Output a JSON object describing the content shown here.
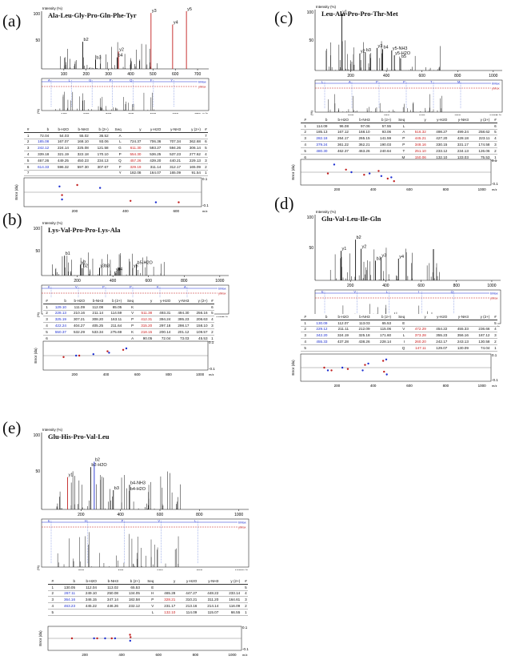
{
  "panels": [
    {
      "label": "(a)",
      "peptide": "Ala-Leu-Gly-Pro-Gln-Phe-Tyr",
      "intensity_label": "Intensity (%)",
      "y100": "100",
      "y50": "50",
      "x_ticks": [
        "100",
        "200",
        "300",
        "400",
        "500",
        "600",
        "700"
      ],
      "mirror_ticks": [
        "100",
        "200",
        "300",
        "400",
        "500",
        "600",
        "700"
      ],
      "mz": "m/z",
      "max_b": "bMax",
      "max_y": "yMax",
      "seq_blue": [
        "A",
        "L",
        "G",
        "P",
        "Q",
        "F",
        "Y"
      ],
      "peaks": [
        {
          "label": "b2",
          "x": 185,
          "h": 0.47,
          "c": "k"
        },
        {
          "label": "b3",
          "x": 242,
          "h": 0.16,
          "c": "k"
        },
        {
          "label": "y2",
          "x": 345,
          "h": 0.3,
          "c": "r"
        },
        {
          "label": "b4",
          "x": 339,
          "h": 0.2,
          "c": "k"
        },
        {
          "label": "y3",
          "x": 491,
          "h": 0.97,
          "c": "r"
        },
        {
          "label": "y4",
          "x": 588,
          "h": 0.77,
          "c": "r"
        },
        {
          "label": "y5",
          "x": 650,
          "h": 1.0,
          "c": "r"
        }
      ],
      "headers": [
        "#",
        "b",
        "b-H2O",
        "b-NH3",
        "b (2+)",
        "Seq",
        "y",
        "y-H2O",
        "y-NH3",
        "y (2+)",
        "#"
      ],
      "rows": [
        [
          "1",
          "72.04",
          "54.03",
          "55.02",
          "36.52",
          "A",
          "",
          "",
          "",
          "",
          "7"
        ],
        [
          "2",
          "185.08",
          "167.07",
          "168.10",
          "93.06",
          "L",
          "724.37",
          "706.36",
          "707.34",
          "362.68",
          "6"
        ],
        [
          "3",
          "242.12",
          "224.14",
          "225.08",
          "121.58",
          "G",
          "611.30",
          "593.27",
          "594.26",
          "306.14",
          "5"
        ],
        [
          "4",
          "339.18",
          "321.19",
          "322.18",
          "170.10",
          "P",
          "554.30",
          "536.25",
          "537.23",
          "277.62",
          "4"
        ],
        [
          "5",
          "467.26",
          "449.25",
          "450.23",
          "234.13",
          "Q",
          "457.26",
          "439.20",
          "440.21",
          "229.13",
          "3"
        ],
        [
          "6",
          "614.33",
          "596.32",
          "597.30",
          "307.67",
          "F",
          "329.19",
          "311.14",
          "312.17",
          "165.09",
          "2"
        ],
        [
          "7",
          "",
          "",
          "",
          "",
          "Y",
          "182.08",
          "164.07",
          "165.09",
          "91.54",
          "1"
        ]
      ],
      "bold_b": [
        "2",
        "3",
        "6"
      ],
      "bold_y": [
        "3",
        "4",
        "5",
        "6"
      ],
      "error_label": "Error (da)",
      "err_top": "0.1",
      "err_bottom": "-0.1",
      "err_ticks": [
        "200",
        "400",
        "600"
      ],
      "errors": [
        [
          150,
          -0.02
        ],
        [
          150,
          -0.05
        ],
        [
          210,
          0.05
        ],
        [
          300,
          0.03
        ],
        [
          420,
          -0.06
        ],
        [
          520,
          -0.07
        ],
        [
          610,
          -0.07
        ],
        [
          140,
          0.04
        ]
      ]
    },
    {
      "label": "(b)",
      "peptide": "Lys-Val-Pro-Pro-Lys-Ala",
      "intensity_label": "Intensity (%)",
      "y100": "100",
      "y50": "50",
      "x_ticks": [
        "200",
        "400",
        "600",
        "800",
        "1000"
      ],
      "mirror_ticks": [
        "200",
        "400",
        "600",
        "800",
        "1000"
      ],
      "mz": "m/z",
      "max_b": "bMax",
      "max_y": "yMax",
      "seq_blue": [
        "K",
        "V",
        "P",
        "P",
        "K",
        "A"
      ],
      "peaks": [
        {
          "label": "b1",
          "x": 129,
          "h": 0.4,
          "c": "k"
        },
        {
          "label": "y2",
          "x": 218,
          "h": 0.22,
          "c": "k"
        },
        {
          "label": "b2",
          "x": 228,
          "h": 0.15,
          "c": "k"
        },
        {
          "label": "y3b3",
          "x": 325,
          "h": 0.15,
          "c": "k"
        },
        {
          "label": "b4",
          "x": 422,
          "h": 0.09,
          "c": "k"
        },
        {
          "label": "y4",
          "x": 412,
          "h": 0.08,
          "c": "k"
        },
        {
          "label": "b5-H2O",
          "x": 532,
          "h": 0.22,
          "c": "k"
        },
        {
          "label": "y5",
          "x": 511,
          "h": 0.15,
          "c": "k"
        }
      ],
      "headers": [
        "#",
        "b",
        "b-H2O",
        "b-NH3",
        "b (2+)",
        "Seq",
        "y",
        "y-H2O",
        "y-NH3",
        "y (2+)",
        "#"
      ],
      "rows": [
        [
          "1",
          "129.10",
          "111.09",
          "112.08",
          "65.05",
          "K",
          "",
          "",
          "",
          "",
          "6"
        ],
        [
          "2",
          "228.13",
          "210.16",
          "211.14",
          "114.59",
          "V",
          "511.38",
          "493.31",
          "494.30",
          "256.16",
          "5"
        ],
        [
          "3",
          "325.19",
          "307.21",
          "308.20",
          "163.11",
          "P",
          "412.31",
          "394.24",
          "395.23",
          "206.63",
          "4"
        ],
        [
          "4",
          "422.24",
          "404.27",
          "405.25",
          "211.64",
          "P",
          "315.20",
          "297.18",
          "298.17",
          "158.10",
          "3"
        ],
        [
          "5",
          "550.37",
          "532.29",
          "533.34",
          "275.69",
          "K",
          "218.15",
          "200.14",
          "201.12",
          "109.57",
          "2"
        ],
        [
          "6",
          "",
          "",
          "",
          "",
          "A",
          "90.05",
          "72.04",
          "73.03",
          "45.53",
          "1"
        ]
      ],
      "bold_b": [
        "1",
        "2",
        "3",
        "4",
        "5"
      ],
      "bold_y": [
        "2",
        "3",
        "4",
        "5"
      ],
      "error_label": "Error (da)",
      "err_top": "0.1",
      "err_bottom": "-0.1",
      "err_ticks": [
        "200",
        "400",
        "600",
        "800",
        "1000"
      ],
      "errors": [
        [
          130,
          -0.01
        ],
        [
          210,
          0.0
        ],
        [
          230,
          0.0
        ],
        [
          320,
          0.01
        ],
        [
          410,
          0.03
        ],
        [
          420,
          0.02
        ],
        [
          510,
          0.04
        ],
        [
          530,
          0.05
        ]
      ]
    },
    {
      "label": "(c)",
      "peptide": "Leu-Ala-Pro-Pro-Thr-Met",
      "intensity_label": "Intensity (%)",
      "y100": "100",
      "y50": "50",
      "x_ticks": [
        "200",
        "400",
        "600",
        "800",
        "1000"
      ],
      "mirror_ticks": [
        "200",
        "400",
        "600",
        "800",
        "1000"
      ],
      "mz": "m/z",
      "max_b": "bMax",
      "max_y": "yMax",
      "seq_blue": [
        "L",
        "A",
        "P",
        "P",
        "T",
        "M"
      ],
      "peaks": [
        {
          "label": "y1",
          "x": 150,
          "h": 0.93,
          "c": "k"
        },
        {
          "label": "y2",
          "x": 251,
          "h": 0.28,
          "c": "k"
        },
        {
          "label": "y3",
          "x": 348,
          "h": 0.37,
          "c": "k"
        },
        {
          "label": "b4",
          "x": 379,
          "h": 0.35,
          "c": "k"
        },
        {
          "label": "b3",
          "x": 282,
          "h": 0.3,
          "c": "k"
        },
        {
          "label": "b5",
          "x": 480,
          "h": 0.2,
          "c": "k"
        },
        {
          "label": "y5-NH3",
          "x": 430,
          "h": 0.33,
          "c": "k"
        },
        {
          "label": "y5-H2O",
          "x": 445,
          "h": 0.25,
          "c": "k"
        }
      ],
      "headers": [
        "#",
        "b",
        "b-H2O",
        "b-NH3",
        "b (2+)",
        "Seq",
        "y",
        "y-H2O",
        "y-NH3",
        "y (2+)",
        "#"
      ],
      "rows": [
        [
          "1",
          "114.09",
          "96.08",
          "97.06",
          "57.55",
          "L",
          "",
          "",
          "",
          "",
          "6"
        ],
        [
          "2",
          "185.13",
          "167.12",
          "168.10",
          "93.06",
          "A",
          "516.32",
          "498.27",
          "499.24",
          "258.62",
          "5"
        ],
        [
          "3",
          "282.18",
          "264.17",
          "265.15",
          "141.59",
          "P",
          "445.21",
          "427.20",
          "428.18",
          "223.11",
          "4"
        ],
        [
          "4",
          "379.24",
          "361.22",
          "362.21",
          "190.03",
          "P",
          "348.16",
          "330.15",
          "331.17",
          "174.58",
          "3"
        ],
        [
          "5",
          "480.30",
          "462.37",
          "463.26",
          "240.64",
          "T",
          "251.10",
          "233.12",
          "234.13",
          "126.06",
          "2"
        ],
        [
          "6",
          "",
          "",
          "",
          "",
          "M",
          "150.06",
          "132.10",
          "133.03",
          "75.53",
          "1"
        ]
      ],
      "bold_b": [
        "3",
        "4",
        "5"
      ],
      "bold_y": [
        "2",
        "3",
        "4",
        "5",
        "6"
      ],
      "error_label": "Error (da)",
      "err_top": "0.1",
      "err_bottom": "-0.1",
      "err_ticks": [
        "200",
        "400",
        "600",
        "800",
        "1000"
      ],
      "errors": [
        [
          150,
          -0.01
        ],
        [
          185,
          0.06
        ],
        [
          250,
          0.02
        ],
        [
          280,
          0.0
        ],
        [
          350,
          -0.02
        ],
        [
          380,
          -0.01
        ],
        [
          430,
          0.01
        ],
        [
          445,
          -0.03
        ],
        [
          480,
          -0.05
        ],
        [
          500,
          -0.04
        ],
        [
          515,
          -0.07
        ]
      ]
    },
    {
      "label": "(d)",
      "peptide": "Glu-Val-Leu-Ile-Gln",
      "intensity_label": "Intensity (%)",
      "y100": "100",
      "y50": "50",
      "x_ticks": [
        "200",
        "400",
        "600",
        "800",
        "1000"
      ],
      "mirror_ticks": [
        "200",
        "400",
        "600",
        "800",
        "1000"
      ],
      "mz": "m/z",
      "max_b": "bMax",
      "max_y": "yMax",
      "seq_blue": [
        "E",
        "V",
        "L",
        "I",
        "Q"
      ],
      "peaks": [
        {
          "label": "y1",
          "x": 147,
          "h": 0.45,
          "c": "k"
        },
        {
          "label": "b2",
          "x": 229,
          "h": 0.62,
          "c": "k"
        },
        {
          "label": "y2",
          "x": 260,
          "h": 0.48,
          "c": "k"
        },
        {
          "label": "b3",
          "x": 342,
          "h": 0.3,
          "c": "k"
        },
        {
          "label": "y3",
          "x": 373,
          "h": 0.35,
          "c": "k"
        },
        {
          "label": "y4",
          "x": 472,
          "h": 0.33,
          "c": "k"
        }
      ],
      "headers": [
        "#",
        "b",
        "b-H2O",
        "b-NH3",
        "b (2+)",
        "Seq",
        "y",
        "y-H2O",
        "y-NH3",
        "y (2+)",
        "#"
      ],
      "rows": [
        [
          "1",
          "130.09",
          "112.07",
          "113.03",
          "65.53",
          "E",
          "",
          "",
          "",
          "",
          "5"
        ],
        [
          "2",
          "229.12",
          "211.11",
          "212.09",
          "115.06",
          "V",
          "472.29",
          "454.22",
          "455.33",
          "236.66",
          "4"
        ],
        [
          "3",
          "342.20",
          "324.19",
          "325.18",
          "171.60",
          "L",
          "373.28",
          "355.23",
          "356.16",
          "187.12",
          "3"
        ],
        [
          "4",
          "455.33",
          "437.28",
          "438.26",
          "228.14",
          "I",
          "260.20",
          "242.17",
          "243.13",
          "130.58",
          "2"
        ],
        [
          "5",
          "",
          "",
          "",
          "",
          "Q",
          "147.11",
          "129.07",
          "130.09",
          "74.04",
          "1"
        ]
      ],
      "bold_b": [
        "1",
        "2",
        "3",
        "4"
      ],
      "bold_y": [
        "2",
        "3",
        "4",
        "5"
      ],
      "error_label": "Error (da)",
      "err_top": "0.1",
      "err_bottom": "-0.1",
      "err_ticks": [
        "200",
        "400",
        "600",
        "800",
        "1000"
      ],
      "errors": [
        [
          130,
          0.0
        ],
        [
          150,
          -0.02
        ],
        [
          170,
          -0.02
        ],
        [
          230,
          0.0
        ],
        [
          260,
          -0.01
        ],
        [
          342,
          -0.02
        ],
        [
          355,
          0.02
        ],
        [
          373,
          0.03
        ],
        [
          455,
          0.05
        ],
        [
          472,
          0.06
        ],
        [
          460,
          -0.03
        ],
        [
          475,
          -0.05
        ]
      ]
    },
    {
      "label": "(e)",
      "peptide": "Glu-His-Pro-Val-Leu",
      "intensity_label": "Intensity (%)",
      "y100": "100",
      "y50": "50",
      "x_ticks": [
        "200",
        "400",
        "600",
        "800",
        "1000"
      ],
      "mirror_ticks": [
        "200",
        "400",
        "600",
        "800",
        "1000"
      ],
      "mz": "m/z",
      "max_b": "bMax",
      "max_y": "yMax",
      "seq_blue": [
        "E",
        "H",
        "P",
        "V",
        "L"
      ],
      "peaks": [
        {
          "label": "y1",
          "x": 132,
          "h": 0.42,
          "c": "r"
        },
        {
          "label": "b2-H2O",
          "x": 249,
          "h": 0.55,
          "c": "k"
        },
        {
          "label": "b2",
          "x": 267,
          "h": 0.62,
          "c": "b"
        },
        {
          "label": "b3",
          "x": 364,
          "h": 0.25,
          "c": "k"
        },
        {
          "label": "b4-NH3",
          "x": 446,
          "h": 0.32,
          "c": "k"
        },
        {
          "label": "b4-H2O",
          "x": 445,
          "h": 0.24,
          "c": "k"
        }
      ],
      "headers": [
        "#",
        "b",
        "b-H2O",
        "b-NH3",
        "b (2+)",
        "Seq",
        "y",
        "y-H2O",
        "y-NH3",
        "y (2+)",
        "#"
      ],
      "rows": [
        [
          "1",
          "130.05",
          "112.04",
          "113.02",
          "65.53",
          "E",
          "",
          "",
          "",
          "",
          "5"
        ],
        [
          "2",
          "267.11",
          "249.10",
          "250.08",
          "134.05",
          "H",
          "465.28",
          "447.27",
          "448.22",
          "233.14",
          "4"
        ],
        [
          "3",
          "364.16",
          "346.15",
          "347.14",
          "182.58",
          "P",
          "328.21",
          "310.21",
          "311.20",
          "164.61",
          "3"
        ],
        [
          "4",
          "463.23",
          "445.22",
          "446.26",
          "232.12",
          "V",
          "231.17",
          "213.16",
          "214.14",
          "116.09",
          "2"
        ],
        [
          "5",
          "",
          "",
          "",
          "",
          "L",
          "132.10",
          "114.09",
          "115.07",
          "66.55",
          "1"
        ]
      ],
      "bold_b": [
        "2",
        "3",
        "4"
      ],
      "bold_y": [
        "3",
        "5"
      ],
      "error_label": "Error (da)",
      "err_top": "0.1",
      "err_bottom": "-0.1",
      "err_ticks": [
        "200",
        "400",
        "600",
        "800",
        "1000"
      ],
      "errors": [
        [
          130,
          0.0
        ],
        [
          250,
          0.0
        ],
        [
          267,
          0.0
        ],
        [
          310,
          0.0
        ],
        [
          346,
          0.0
        ],
        [
          364,
          0.0
        ],
        [
          445,
          0.03
        ],
        [
          446,
          -0.02
        ],
        [
          448,
          0.01
        ]
      ]
    }
  ]
}
